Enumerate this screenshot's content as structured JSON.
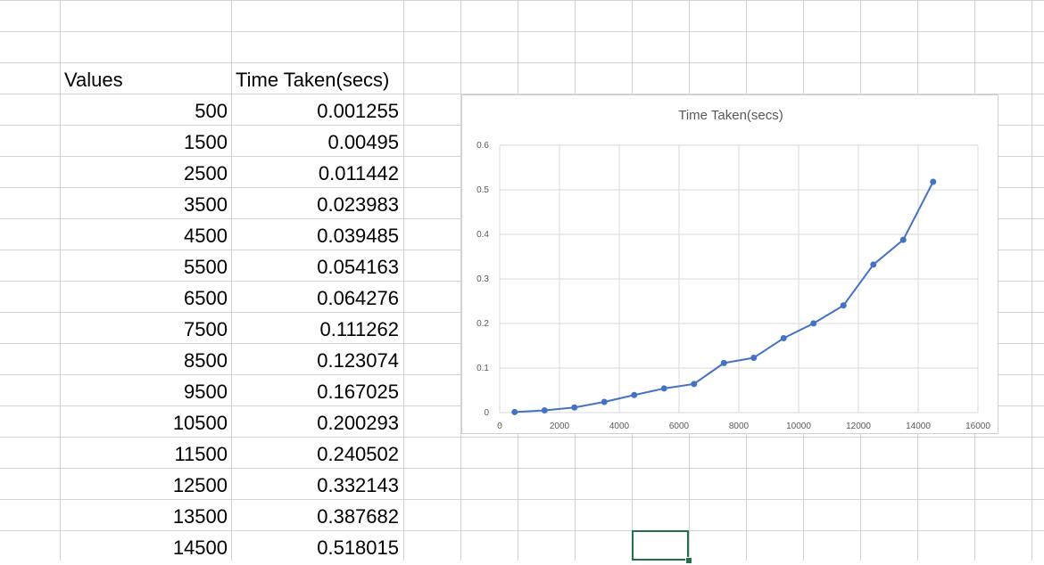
{
  "sheet": {
    "header_values": "Values",
    "header_time": "Time Taken(secs)",
    "rows": [
      {
        "value": "500",
        "time": "0.001255"
      },
      {
        "value": "1500",
        "time": "0.00495"
      },
      {
        "value": "2500",
        "time": "0.011442"
      },
      {
        "value": "3500",
        "time": "0.023983"
      },
      {
        "value": "4500",
        "time": "0.039485"
      },
      {
        "value": "5500",
        "time": "0.054163"
      },
      {
        "value": "6500",
        "time": "0.064276"
      },
      {
        "value": "7500",
        "time": "0.111262"
      },
      {
        "value": "8500",
        "time": "0.123074"
      },
      {
        "value": "9500",
        "time": "0.167025"
      },
      {
        "value": "10500",
        "time": "0.200293"
      },
      {
        "value": "11500",
        "time": "0.240502"
      },
      {
        "value": "12500",
        "time": "0.332143"
      },
      {
        "value": "13500",
        "time": "0.387682"
      },
      {
        "value": "14500",
        "time": "0.518015"
      }
    ]
  },
  "colors": {
    "gridline": "#d4d4d4",
    "series": "#4472c4",
    "chart_grid": "#d9d9d9",
    "selection": "#217346"
  },
  "chart_data": {
    "type": "scatter",
    "title": "Time Taken(secs)",
    "xlabel": "",
    "ylabel": "",
    "xlim": [
      0,
      16000
    ],
    "ylim": [
      0,
      0.6
    ],
    "x_ticks": [
      "0",
      "2000",
      "4000",
      "6000",
      "8000",
      "10000",
      "12000",
      "14000",
      "16000"
    ],
    "y_ticks": [
      "0",
      "0.1",
      "0.2",
      "0.3",
      "0.4",
      "0.5",
      "0.6"
    ],
    "grid": true,
    "legend": "none",
    "lines_connect_points": true,
    "series": [
      {
        "x": [
          500,
          1500,
          2500,
          3500,
          4500,
          5500,
          6500,
          7500,
          8500,
          9500,
          10500,
          11500,
          12500,
          13500,
          14500
        ],
        "y": [
          0.001255,
          0.00495,
          0.011442,
          0.023983,
          0.039485,
          0.054163,
          0.064276,
          0.111262,
          0.123074,
          0.167025,
          0.200293,
          0.240502,
          0.332143,
          0.387682,
          0.518015
        ]
      }
    ]
  }
}
